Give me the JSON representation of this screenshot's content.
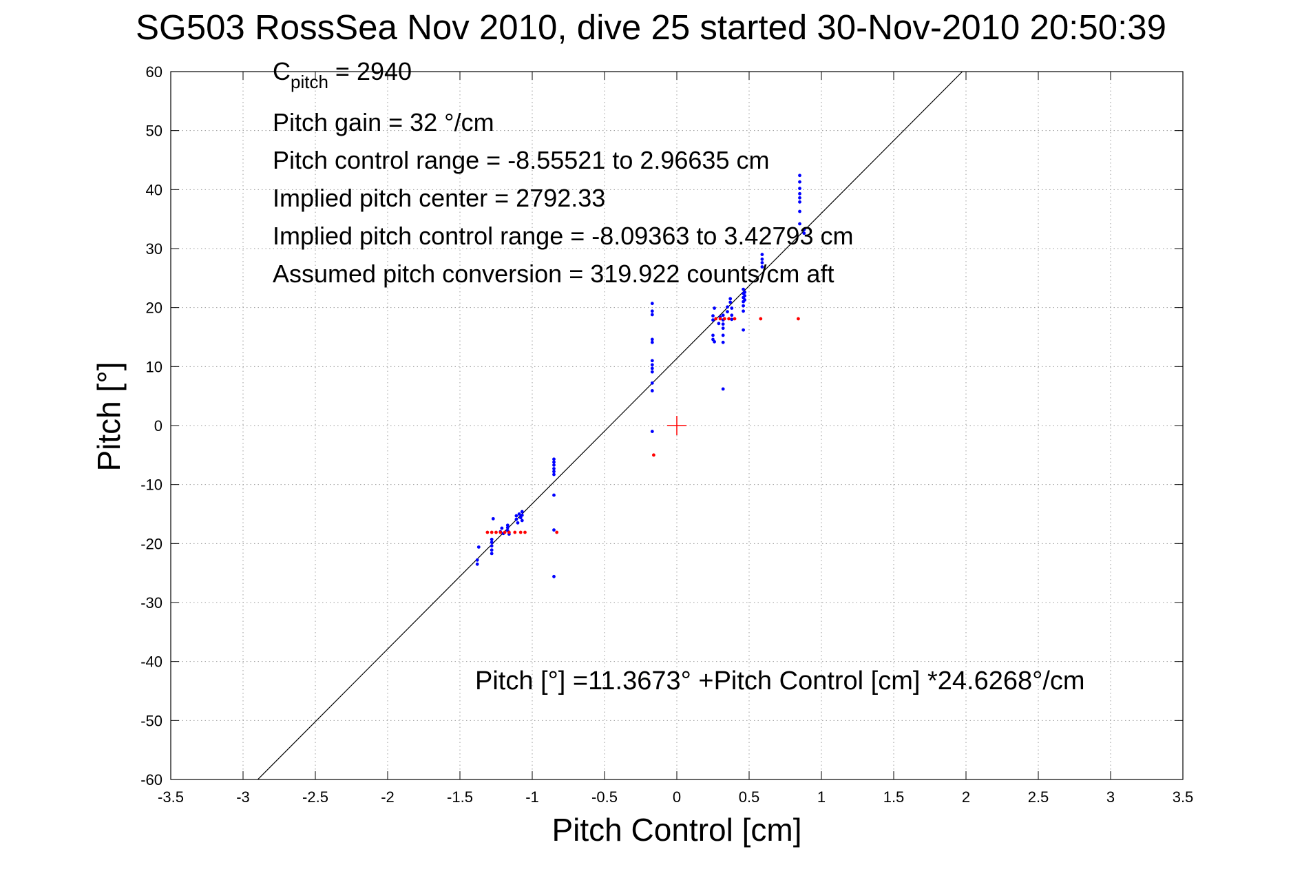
{
  "chart_data": {
    "type": "scatter",
    "title": "SG503 RossSea Nov 2010, dive 25 started 30-Nov-2010 20:50:39",
    "xlabel": "Pitch Control [cm]",
    "ylabel": "Pitch [°]",
    "xlim": [
      -3.5,
      3.5
    ],
    "ylim": [
      -60,
      60
    ],
    "xticks": [
      -3.5,
      -3,
      -2.5,
      -2,
      -1.5,
      -1,
      -0.5,
      0,
      0.5,
      1,
      1.5,
      2,
      2.5,
      3,
      3.5
    ],
    "yticks": [
      -60,
      -50,
      -40,
      -30,
      -20,
      -10,
      0,
      10,
      20,
      30,
      40,
      50,
      60
    ],
    "grid": true,
    "annotations": {
      "c_pitch_base": "C",
      "c_pitch_sub": "pitch",
      "c_pitch_value": " = 2940",
      "pitch_gain": "Pitch gain = 32 °/cm",
      "control_range": "Pitch control range = -8.55521 to 2.96635 cm",
      "implied_center": "Implied pitch center = 2792.33",
      "implied_range": "Implied pitch control range = -8.09363 to 3.42793 cm",
      "conversion": "Assumed pitch conversion = 319.922 counts/cm aft",
      "fit_equation": "Pitch [°] =11.3673° +Pitch Control [cm] *24.6268°/cm"
    },
    "fit_line": {
      "intercept": 11.3673,
      "slope": 24.6268,
      "color": "#000000"
    },
    "center_marker": {
      "x": 0,
      "y": 0,
      "color": "#ff0000"
    },
    "series": [
      {
        "color": "#0000ff",
        "marker": "dot",
        "points": [
          [
            -1.38,
            -23.5
          ],
          [
            -1.38,
            -22.8
          ],
          [
            -1.37,
            -20.6
          ],
          [
            -1.28,
            -19.3
          ],
          [
            -1.28,
            -19.8
          ],
          [
            -1.28,
            -20.4
          ],
          [
            -1.28,
            -21.1
          ],
          [
            -1.28,
            -21.7
          ],
          [
            -1.27,
            -15.8
          ],
          [
            -1.22,
            -18.0
          ],
          [
            -1.21,
            -17.4
          ],
          [
            -1.2,
            -18.3
          ],
          [
            -1.17,
            -16.9
          ],
          [
            -1.17,
            -17.3
          ],
          [
            -1.17,
            -17.8
          ],
          [
            -1.16,
            -18.4
          ],
          [
            -1.11,
            -15.3
          ],
          [
            -1.11,
            -15.9
          ],
          [
            -1.1,
            -16.5
          ],
          [
            -1.09,
            -15.0
          ],
          [
            -1.08,
            -15.6
          ],
          [
            -1.07,
            -14.6
          ],
          [
            -1.07,
            -15.2
          ],
          [
            -1.07,
            -16.1
          ],
          [
            -0.85,
            -5.7
          ],
          [
            -0.85,
            -6.2
          ],
          [
            -0.85,
            -6.7
          ],
          [
            -0.85,
            -7.3
          ],
          [
            -0.85,
            -7.8
          ],
          [
            -0.85,
            -8.3
          ],
          [
            -0.85,
            -11.8
          ],
          [
            -0.85,
            -17.7
          ],
          [
            -0.85,
            -25.6
          ],
          [
            -0.17,
            20.7
          ],
          [
            -0.17,
            19.4
          ],
          [
            -0.17,
            18.8
          ],
          [
            -0.17,
            14.6
          ],
          [
            -0.17,
            14.1
          ],
          [
            -0.17,
            11.0
          ],
          [
            -0.17,
            10.3
          ],
          [
            -0.17,
            9.7
          ],
          [
            -0.17,
            9.1
          ],
          [
            -0.17,
            7.2
          ],
          [
            -0.17,
            5.9
          ],
          [
            -0.17,
            -1.0
          ],
          [
            0.25,
            18.6
          ],
          [
            0.25,
            17.9
          ],
          [
            0.25,
            15.3
          ],
          [
            0.25,
            14.6
          ],
          [
            0.26,
            19.9
          ],
          [
            0.26,
            14.2
          ],
          [
            0.29,
            17.3
          ],
          [
            0.3,
            18.4
          ],
          [
            0.32,
            16.5
          ],
          [
            0.32,
            17.2
          ],
          [
            0.32,
            17.9
          ],
          [
            0.32,
            15.3
          ],
          [
            0.32,
            14.1
          ],
          [
            0.32,
            6.2
          ],
          [
            0.32,
            18.7
          ],
          [
            0.35,
            19.3
          ],
          [
            0.35,
            20.1
          ],
          [
            0.37,
            20.9
          ],
          [
            0.37,
            21.5
          ],
          [
            0.38,
            19.9
          ],
          [
            0.38,
            18.7
          ],
          [
            0.38,
            18.0
          ],
          [
            0.46,
            19.4
          ],
          [
            0.46,
            20.3
          ],
          [
            0.46,
            21.0
          ],
          [
            0.46,
            21.7
          ],
          [
            0.46,
            22.4
          ],
          [
            0.46,
            23.1
          ],
          [
            0.46,
            16.2
          ],
          [
            0.47,
            21.3
          ],
          [
            0.47,
            22.0
          ],
          [
            0.47,
            22.6
          ],
          [
            0.59,
            26.9
          ],
          [
            0.59,
            27.6
          ],
          [
            0.59,
            28.2
          ],
          [
            0.59,
            29.0
          ],
          [
            0.85,
            34.2
          ],
          [
            0.85,
            36.3
          ],
          [
            0.85,
            37.9
          ],
          [
            0.85,
            38.6
          ],
          [
            0.85,
            39.3
          ],
          [
            0.85,
            40.2
          ],
          [
            0.85,
            41.3
          ],
          [
            0.85,
            42.4
          ],
          [
            0.88,
            32.6
          ],
          [
            0.88,
            33.2
          ]
        ]
      },
      {
        "color": "#ff0000",
        "marker": "dot",
        "points": [
          [
            -1.31,
            -18.1
          ],
          [
            -1.28,
            -18.1
          ],
          [
            -1.25,
            -18.1
          ],
          [
            -1.22,
            -18.1
          ],
          [
            -1.19,
            -18.1
          ],
          [
            -1.16,
            -18.1
          ],
          [
            -1.12,
            -18.1
          ],
          [
            -1.08,
            -18.1
          ],
          [
            -1.05,
            -18.1
          ],
          [
            -0.83,
            -18.1
          ],
          [
            -0.16,
            -5.0
          ],
          [
            0.27,
            18.1
          ],
          [
            0.3,
            18.1
          ],
          [
            0.33,
            18.1
          ],
          [
            0.36,
            18.1
          ],
          [
            0.4,
            18.1
          ],
          [
            0.58,
            18.1
          ],
          [
            0.84,
            18.1
          ]
        ]
      }
    ]
  }
}
